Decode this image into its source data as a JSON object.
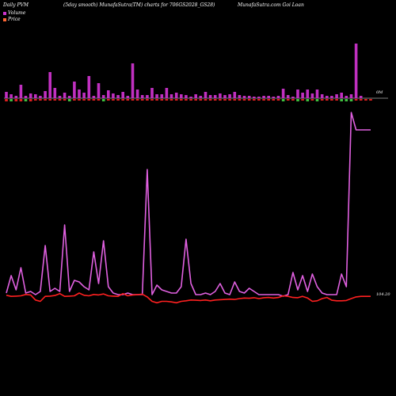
{
  "header": {
    "left": "Daily PVM",
    "center": "(5day smooth) MunafaSutra(TM) charts for 706GS2028_GS28)",
    "center_overlap": "2035_GS",
    "right": "MunafaSutra.com    Goi   Loan"
  },
  "legend": [
    {
      "label": "Volume",
      "color": "#cc33cc"
    },
    {
      "label": "Price",
      "color": "#ff6633"
    }
  ],
  "colors": {
    "background": "#000000",
    "volume_up": "#c030c0",
    "volume_down_red": "#e02020",
    "volume_down_green": "#40c040",
    "volume_line": "#e060e0",
    "price_line": "#ff2020"
  },
  "labels": {
    "volume_zero": "0M",
    "price_last": "104.20"
  },
  "chart_data": {
    "type": "bar",
    "title": "Daily PVM (5day smooth) MunafaSutra(TM) charts for 706GS2028_GS28)",
    "x": [
      1,
      2,
      3,
      4,
      5,
      6,
      7,
      8,
      9,
      10,
      11,
      12,
      13,
      14,
      15,
      16,
      17,
      18,
      19,
      20,
      21,
      22,
      23,
      24,
      25,
      26,
      27,
      28,
      29,
      30,
      31,
      32,
      33,
      34,
      35,
      36,
      37,
      38,
      39,
      40,
      41,
      42,
      43,
      44,
      45,
      46,
      47,
      48,
      49,
      50,
      51,
      52,
      53,
      54,
      55,
      56,
      57,
      58,
      59,
      60,
      61,
      62,
      63,
      64,
      65,
      66,
      67,
      68,
      69,
      70,
      71,
      72,
      73,
      74,
      75,
      76
    ],
    "series": [
      {
        "name": "Volume",
        "kind": "bars",
        "values": [
          8,
          5,
          3,
          17,
          3,
          6,
          5,
          3,
          9,
          33,
          13,
          3,
          7,
          3,
          21,
          11,
          7,
          28,
          3,
          19,
          4,
          10,
          6,
          4,
          8,
          3,
          44,
          11,
          4,
          4,
          13,
          5,
          5,
          13,
          5,
          7,
          5,
          4,
          2,
          5,
          3,
          8,
          4,
          4,
          6,
          4,
          5,
          8,
          4,
          3,
          3,
          2,
          2,
          3,
          3,
          2,
          3,
          12,
          4,
          2,
          11,
          7,
          11,
          6,
          11,
          5,
          3,
          3,
          5,
          7,
          3,
          5,
          69,
          3,
          0,
          0
        ],
        "down_colors": [
          "red",
          "green",
          "red",
          "red",
          "green",
          "red",
          "red",
          "red",
          "red",
          "red",
          "red",
          "red",
          "red",
          "green",
          "red",
          "red",
          "red",
          "red",
          "red",
          "red",
          "green",
          "red",
          "red",
          "red",
          "red",
          "red",
          "red",
          "red",
          "red",
          "red",
          "red",
          "red",
          "red",
          "red",
          "red",
          "red",
          "red",
          "red",
          "red",
          "red",
          "red",
          "red",
          "red",
          "red",
          "red",
          "red",
          "red",
          "red",
          "red",
          "red",
          "red",
          "red",
          "red",
          "red",
          "red",
          "red",
          "red",
          "green",
          "red",
          "red",
          "green",
          "red",
          "green",
          "red",
          "green",
          "red",
          "red",
          "red",
          "red",
          "green",
          "green",
          "green",
          "red",
          "red",
          "red",
          "red"
        ],
        "down_values": [
          3,
          3,
          3,
          3,
          3,
          3,
          2,
          2,
          2,
          2,
          2,
          2,
          2,
          3,
          2,
          2,
          2,
          2,
          2,
          2,
          3,
          2,
          2,
          2,
          2,
          2,
          2,
          2,
          2,
          2,
          2,
          2,
          2,
          2,
          2,
          2,
          2,
          2,
          2,
          2,
          2,
          2,
          2,
          2,
          2,
          2,
          2,
          2,
          2,
          2,
          2,
          2,
          2,
          2,
          2,
          2,
          2,
          3,
          2,
          2,
          3,
          2,
          3,
          2,
          3,
          2,
          2,
          2,
          2,
          3,
          3,
          3,
          2,
          2,
          2,
          2
        ]
      },
      {
        "name": "Volume",
        "kind": "line",
        "values": [
          2,
          13,
          4,
          18,
          2,
          3,
          1,
          3,
          32,
          3,
          5,
          3,
          45,
          3,
          10,
          9,
          6,
          4,
          28,
          8,
          35,
          6,
          2,
          1,
          1,
          2,
          1,
          1,
          1,
          80,
          1,
          7,
          4,
          3,
          2,
          2,
          6,
          36,
          8,
          1,
          1,
          2,
          1,
          3,
          8,
          2,
          1,
          9,
          3,
          2,
          5,
          3,
          1,
          1,
          1,
          1,
          1,
          0,
          1,
          15,
          4,
          13,
          3,
          14,
          6,
          2,
          1,
          1,
          1,
          14,
          6,
          116,
          105,
          105,
          105,
          105
        ]
      },
      {
        "name": "Price",
        "kind": "line",
        "values": [
          1.2,
          0.8,
          0.9,
          1.0,
          1.5,
          1.3,
          -0.5,
          -1.0,
          0.8,
          0.9,
          1.1,
          1.8,
          0.8,
          0.9,
          1.0,
          2.0,
          1.2,
          1.0,
          1.5,
          1.3,
          1.7,
          1.0,
          0.9,
          0.8,
          1.8,
          1.0,
          1.3,
          1.4,
          1.6,
          0.6,
          -1.0,
          -1.5,
          -1.0,
          -1.0,
          -1.2,
          -1.5,
          -1.0,
          -0.8,
          -0.5,
          -0.6,
          -0.7,
          -0.5,
          -0.8,
          -0.5,
          -0.4,
          -0.3,
          -0.2,
          -0.3,
          0.0,
          0.2,
          0.1,
          0.3,
          0.0,
          0.3,
          0.4,
          0.2,
          0.4,
          1.0,
          0.8,
          0.4,
          0.3,
          0.8,
          0.2,
          -1.0,
          -0.8,
          0.0,
          0.4,
          -0.6,
          -0.8,
          -0.8,
          -0.7,
          0.0,
          0.6,
          0.8,
          0.8,
          0.8
        ]
      }
    ],
    "ylabel_volume": "0M",
    "last_price": "104.20",
    "legend": [
      "Volume",
      "Price"
    ],
    "legend_position": "top-left",
    "grid": false
  }
}
